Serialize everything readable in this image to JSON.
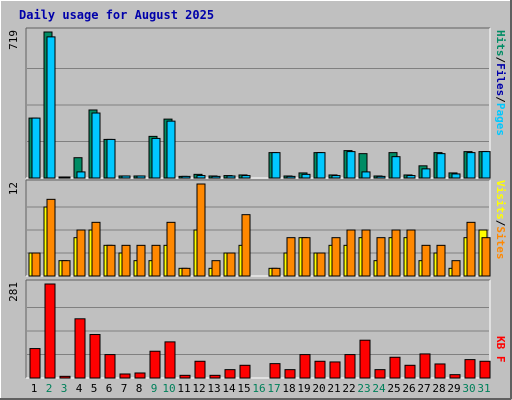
{
  "title": "Daily usage for August 2025",
  "colors": {
    "background": "#c0c0c0",
    "title_text": "#0000aa",
    "hits": "#00c8ff",
    "files": "#008c64",
    "pages": "#00c8ff",
    "visits": "#ffff00",
    "sites": "#ff8800",
    "kbytes": "#ff0000",
    "weekday_label": "#000000",
    "weekend_label": "#00805a"
  },
  "chart_data": [
    {
      "type": "bar",
      "panel": "hits-files-pages",
      "max_label": "719",
      "ylim": [
        0,
        719
      ],
      "grid": true,
      "legend_labels": [
        "Pages",
        "Files",
        "Hits"
      ],
      "categories": [
        "1",
        "2",
        "3",
        "4",
        "5",
        "6",
        "7",
        "8",
        "9",
        "10",
        "11",
        "12",
        "13",
        "14",
        "15",
        "16",
        "17",
        "18",
        "19",
        "20",
        "21",
        "22",
        "23",
        "24",
        "25",
        "26",
        "27",
        "28",
        "29",
        "30",
        "31"
      ],
      "series": [
        {
          "name": "Hits",
          "values": [
            295,
            719,
            5,
            100,
            335,
            190,
            10,
            10,
            205,
            290,
            8,
            18,
            10,
            12,
            15,
            0,
            125,
            10,
            25,
            125,
            15,
            135,
            120,
            10,
            125,
            15,
            60,
            125,
            25,
            130,
            130
          ]
        },
        {
          "name": "Files",
          "values": [
            295,
            695,
            5,
            30,
            320,
            190,
            10,
            10,
            195,
            280,
            8,
            12,
            8,
            10,
            12,
            0,
            125,
            8,
            18,
            125,
            12,
            130,
            30,
            8,
            105,
            12,
            45,
            120,
            20,
            125,
            130
          ]
        },
        {
          "name": "Pages",
          "values": [
            0,
            0,
            0,
            0,
            0,
            0,
            0,
            0,
            0,
            0,
            0,
            0,
            0,
            0,
            0,
            0,
            0,
            0,
            0,
            0,
            0,
            0,
            0,
            0,
            0,
            0,
            0,
            0,
            0,
            0,
            0
          ]
        }
      ]
    },
    {
      "type": "bar",
      "panel": "visits-sites",
      "max_label": "12",
      "ylim": [
        0,
        12
      ],
      "grid": true,
      "legend_labels": [
        "Sites",
        "Visits"
      ],
      "categories": [
        "1",
        "2",
        "3",
        "4",
        "5",
        "6",
        "7",
        "8",
        "9",
        "10",
        "11",
        "12",
        "13",
        "14",
        "15",
        "16",
        "17",
        "18",
        "19",
        "20",
        "21",
        "22",
        "23",
        "24",
        "25",
        "26",
        "27",
        "28",
        "29",
        "30",
        "31"
      ],
      "series": [
        {
          "name": "Visits",
          "values": [
            3,
            9,
            2,
            5,
            6,
            4,
            3,
            2,
            2,
            4,
            1,
            6,
            1,
            3,
            4,
            0,
            1,
            3,
            5,
            3,
            4,
            4,
            5,
            2,
            5,
            5,
            2,
            3,
            1,
            5,
            6
          ]
        },
        {
          "name": "Sites",
          "values": [
            3,
            10,
            2,
            6,
            7,
            4,
            4,
            4,
            4,
            7,
            1,
            12,
            2,
            3,
            8,
            0,
            1,
            5,
            5,
            3,
            5,
            6,
            6,
            5,
            6,
            6,
            4,
            4,
            2,
            7,
            5
          ]
        }
      ]
    },
    {
      "type": "bar",
      "panel": "kbytes",
      "max_label": "281",
      "ylim": [
        0,
        281
      ],
      "grid": true,
      "legend_labels": [
        "KB F"
      ],
      "categories": [
        "1",
        "2",
        "3",
        "4",
        "5",
        "6",
        "7",
        "8",
        "9",
        "10",
        "11",
        "12",
        "13",
        "14",
        "15",
        "16",
        "17",
        "18",
        "19",
        "20",
        "21",
        "22",
        "23",
        "24",
        "25",
        "26",
        "27",
        "28",
        "29",
        "30",
        "31"
      ],
      "series": [
        {
          "name": "KB F",
          "values": [
            88,
            281,
            5,
            177,
            130,
            70,
            12,
            15,
            80,
            108,
            8,
            50,
            8,
            25,
            38,
            0,
            43,
            25,
            70,
            50,
            48,
            70,
            113,
            25,
            62,
            38,
            72,
            42,
            10,
            55,
            50
          ]
        }
      ]
    }
  ],
  "days": [
    "1",
    "2",
    "3",
    "4",
    "5",
    "6",
    "7",
    "8",
    "9",
    "10",
    "11",
    "12",
    "13",
    "14",
    "15",
    "16",
    "17",
    "18",
    "19",
    "20",
    "21",
    "22",
    "23",
    "24",
    "25",
    "26",
    "27",
    "28",
    "29",
    "30",
    "31"
  ],
  "weekend_days": [
    2,
    3,
    9,
    10,
    16,
    17,
    23,
    24,
    30,
    31
  ]
}
